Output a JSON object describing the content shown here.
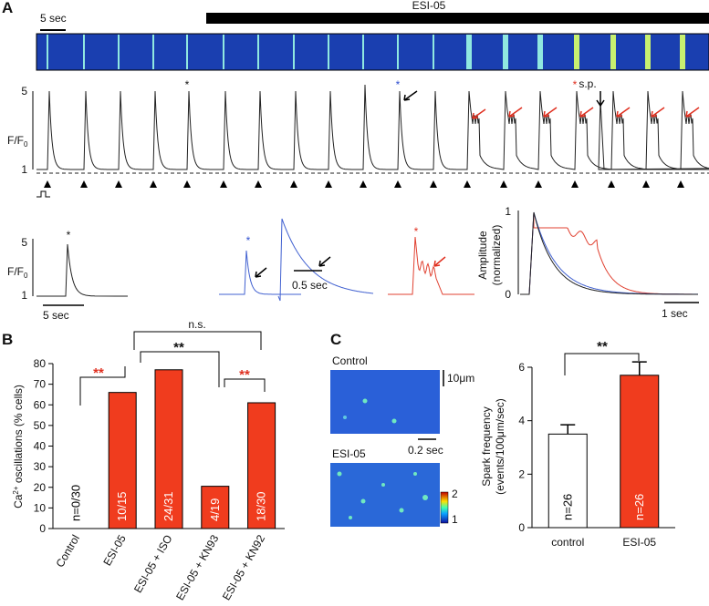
{
  "panel_a": {
    "letter": "A",
    "scale_top": "5 sec",
    "drug": "ESI-05",
    "ylabel": {
      "main": "F/F",
      "sub": "0"
    },
    "tick_hi": "5",
    "tick_lo": "1",
    "star": "*",
    "sp": "s.p.",
    "scale_bottom": "5 sec",
    "scale_zoom": "0.5 sec",
    "amp_label": "Amplitude",
    "amp_sub": "(normalized)",
    "amp_hi": "1",
    "amp_lo": "0",
    "scale_overlay": "1 sec"
  },
  "panel_c": {
    "letter": "C",
    "control": "Control",
    "esi": "ESI-05",
    "scale_y": "10μm",
    "scale_x": "0.2 sec",
    "cbar_hi": "2",
    "cbar_lo": "1"
  },
  "chart_data": [
    {
      "type": "bar",
      "letter": "B",
      "ylabel": {
        "main": "Ca",
        "sup": "2+",
        "rest": " oscillations (% cells)"
      },
      "categories": [
        "Control",
        "ESI-05",
        "ESI-05 + ISO",
        "ESI-05 + KN93",
        "ESI-05 + KN92"
      ],
      "values": [
        0,
        66,
        77,
        20.5,
        61
      ],
      "bar_labels": [
        "n=0/30",
        "10/15",
        "24/31",
        "4/19",
        "18/30"
      ],
      "color": "#f03c1e",
      "ylim": [
        0,
        80
      ],
      "yticks": [
        0,
        10,
        20,
        30,
        40,
        50,
        60,
        70,
        80
      ],
      "annotations": [
        "**",
        "**",
        "**",
        "n.s."
      ]
    },
    {
      "type": "bar",
      "ylabel": {
        "line1": "Spark frequency",
        "line2": "(events/100μm/sec)"
      },
      "categories": [
        "control",
        "ESI-05"
      ],
      "values": [
        3.5,
        5.7
      ],
      "errors": [
        0.35,
        0.5
      ],
      "bar_labels": [
        "n=26",
        "n=26"
      ],
      "colors": [
        "#ffffff",
        "#f03c1e"
      ],
      "ylim": [
        0,
        6
      ],
      "yticks": [
        0,
        2,
        4,
        6
      ],
      "annotations": [
        "**"
      ]
    }
  ]
}
